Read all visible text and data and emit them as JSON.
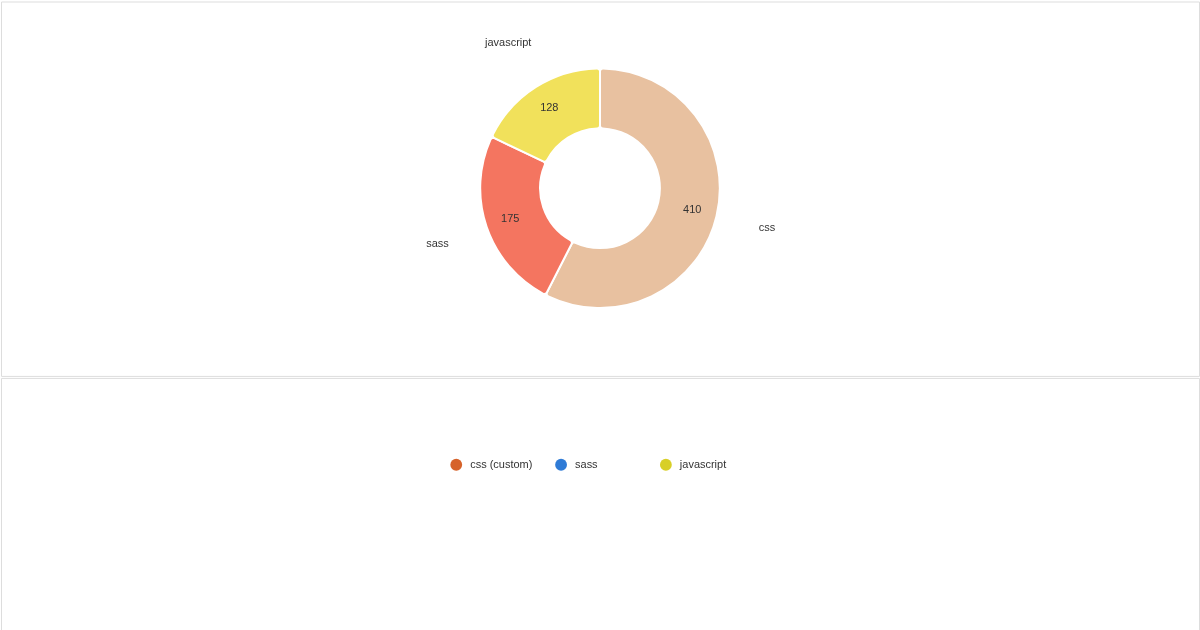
{
  "chart_data": [
    {
      "type": "donut",
      "categories": [
        "css",
        "sass",
        "javascript"
      ],
      "values": [
        410,
        175,
        128
      ],
      "colors": [
        "#e8c1a0",
        "#f47560",
        "#f1e15b"
      ],
      "data_labels": true,
      "legend": false
    },
    {
      "type": "other",
      "legend": "bottom",
      "series": [
        {
          "name": "css (custom)",
          "color": "#d6622a"
        },
        {
          "name": "sass",
          "color": "#2f7bd6"
        },
        {
          "name": "javascript",
          "color": "#d8cf27"
        }
      ]
    }
  ]
}
